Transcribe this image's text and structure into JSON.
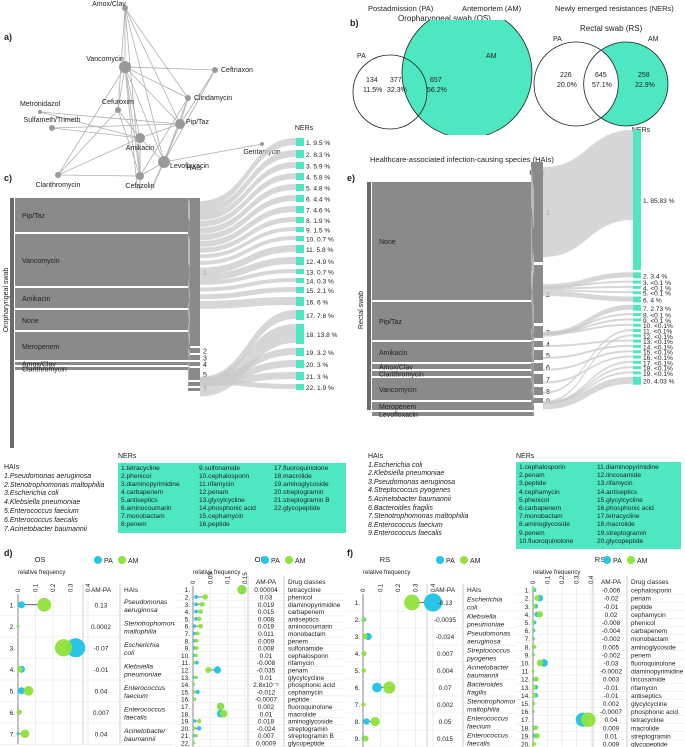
{
  "panels": {
    "a": "a)",
    "b": "b)",
    "c": "c)",
    "d": "d)",
    "e": "e)",
    "f": "f)"
  },
  "network": {
    "nodes": [
      "Amox/Clav",
      "Ceftriaxon",
      "Vancomycin",
      "Clindamycin",
      "Cefuroxim",
      "Metronidazol",
      "Pip/Taz",
      "Sulfameth/Trimeth",
      "Amikacin",
      "Gentamycin",
      "Levofloxacin",
      "Clarithromycin",
      "Cefazolin",
      "Meropenem"
    ]
  },
  "venn_header": {
    "pa": "Postadmission (PA)",
    "am": "Antemortem (AM)",
    "ner": "Newly emerged resistances (NERs)"
  },
  "venn_os": {
    "title": "Oropharyngeal swab (OS)",
    "left_label": "PA",
    "right_label": "AM",
    "left_n": "134",
    "left_p": "11.5%",
    "mid_n": "377",
    "mid_p": "32.3%",
    "right_n": "657",
    "right_p": "56.2%",
    "accent": "#4de8c2"
  },
  "venn_rs": {
    "title": "Rectal swab (RS)",
    "left_label": "PA",
    "right_label": "AM",
    "left_n": "226",
    "left_p": "20.0%",
    "mid_n": "645",
    "mid_p": "57.1%",
    "right_n": "258",
    "right_p": "22.9%"
  },
  "sankey_c": {
    "side_label": "Oropharyngeal swab",
    "hais": "HAIs",
    "ners": "NERs",
    "drugs": [
      "Pip/Taz",
      "Vancomycin",
      "Amikacin",
      "None",
      "Meropenem",
      "Amox/Clav",
      "Clarithromycin"
    ],
    "hai_nums": [
      "1",
      "2",
      "3",
      "4",
      "5",
      "6",
      "7"
    ],
    "ner_labels": [
      "1. 9.5 %",
      "2. 8.3 %",
      "3. 5.9 %",
      "4. 5.8 %",
      "5. 4.8 %",
      "6. 4.4 %",
      "7. 4.6 %",
      "8. 1.9 %",
      "9. 1.5 %",
      "10. 0.7 %",
      "11. 5.8 %",
      "12. 4.9 %",
      "13. 0.7 %",
      "14. 0.3 %",
      "15. 2.1 %",
      "16. 6 %",
      "17. 7.8 %",
      "18. 13.8 %",
      "19. 3.2 %",
      "20. 3 %",
      "21. 3 %",
      "22. 1.9 %"
    ]
  },
  "sankey_e": {
    "title": "Healthcare-associated infection-causing species (HAIs)",
    "side_label": "Rectal swab",
    "hais": "HAIs",
    "ners": "NERs",
    "drugs": [
      "None",
      "Pip/Taz",
      "Amikacin",
      "Amox/Clav",
      "Clarithromycin",
      "Vancomycin",
      "Meropenem",
      "Levofloxacin"
    ],
    "hai_nums": [
      "1",
      "2",
      "3",
      "4",
      "5",
      "6",
      "7",
      "8",
      "9"
    ],
    "ner_labels": [
      "1. 85.83 %",
      "2. 3.4 %",
      "3. <0.1 %",
      "4. <0.1 %",
      "5. <0.1 %",
      "6. 4 %",
      "7. 2.73 %",
      "8. <0.1 %",
      "9. <0.1 %",
      "10. <0.1%",
      "11. <0.1%",
      "12. <0.1%",
      "13. <0.1%",
      "14. <0.1%",
      "15. <0.1%",
      "16. <0.1%",
      "17. <0.1%",
      "18. <0.1%",
      "19. <0.1%",
      "20. 4.03 %"
    ]
  },
  "legend_c": {
    "hai_title": "HAIs",
    "hais": [
      "1.Pseudomonas aeruginosa",
      "2.Stenotrophomonas maltophilia",
      "3.Escherichia coli",
      "4.Klebsiella pneumoniae",
      "5.Enterococcus faecium",
      "6.Enterococcus faecalis",
      "7.Acinetobacter baumannii"
    ],
    "ner_title": "NERs",
    "ners": [
      "1.tetracycline",
      "2.phenicol",
      "3.diaminopyrimidine",
      "4.carbapenem",
      "5.antiseptics",
      "6.aminocoumarin",
      "7.monobactam",
      "8.penem",
      "9.sulfonamide",
      "10.cephalosporin",
      "11.rifamycin",
      "12.penam",
      "13.glycylcycline",
      "14.phosphonic acid",
      "15.cephamycin",
      "16.peptide",
      "17.fluoroquinolone",
      "18.macrolide",
      "19.aminoglycoside",
      "20.streptogramin",
      "21.streptogramin B",
      "22.glycopeptide"
    ]
  },
  "legend_e": {
    "hai_title": "HAIs",
    "hais": [
      "1.Escherichia coli",
      "2.Klebsiella pneumoniae",
      "3.Pseudomonas aeruginosa",
      "4.Streptococcus pyogenes",
      "5.Acinetobacter baumannii",
      "6.Bacteroides fragilis",
      "7.Stenotrophomonas maltophilia",
      "8.Enterococcus faecium",
      "9.Enterococcus faecalis"
    ],
    "ner_title": "NERs",
    "ners": [
      "1.cephalosporin",
      "2.penam",
      "3.peptide",
      "4.cephamycin",
      "5.phenicol",
      "6.carbapenem",
      "7.monobactam",
      "8.aminoglycoside",
      "9.penem",
      "10.fluoroquinolone",
      "11.diaminopyrimidine",
      "12.lincosamide",
      "13.rifamycin",
      "14.antiseptics",
      "15.glycylcycline",
      "16.phosphonic acid",
      "17.tetracycline",
      "18.macrolide",
      "19.streptogramin",
      "20.glycopeptide"
    ]
  },
  "dot_d_hai": {
    "title": "OS",
    "freq_label": "relative frequency",
    "legend": [
      "PA",
      "AM"
    ],
    "col_amp": "AM-PA",
    "col_name": "HAIs",
    "ticks": [
      "0",
      "0.1",
      "0.2",
      "0.3",
      "0.4"
    ],
    "rows": [
      {
        "n": "1.",
        "name": "Pseudomonas aeruginosa",
        "amp": "0.13",
        "pa": 0.02,
        "am": 0.15
      },
      {
        "n": "2.",
        "name": "Stenotrophomonas maltophilia",
        "amp": "0.0002",
        "pa": 0.0,
        "am": 0.0
      },
      {
        "n": "3.",
        "name": "Escherichia coli",
        "amp": "-0.07",
        "pa": 0.33,
        "am": 0.26
      },
      {
        "n": "4.",
        "name": "Klebsiella pneumoniae",
        "amp": "-0.01",
        "pa": 0.02,
        "am": 0.01
      },
      {
        "n": "5.",
        "name": "Enterococcus faecium",
        "amp": "0.04",
        "pa": 0.02,
        "am": 0.06
      },
      {
        "n": "6.",
        "name": "Enterococcus faecalis",
        "amp": "0.007",
        "pa": 0.0,
        "am": 0.007
      },
      {
        "n": "7.",
        "name": "Acinetobacter baumannii",
        "amp": "0.04",
        "pa": 0.0,
        "am": 0.04
      }
    ]
  },
  "dot_d_drug": {
    "title": "OS",
    "freq_label": "relative frequency",
    "legend": [
      "PA",
      "AM"
    ],
    "col_amp": "AM-PA",
    "col_name": "Drug classes",
    "ticks": [
      "0",
      "0.05",
      "0.1",
      "0.15"
    ],
    "rows": [
      {
        "n": "1.",
        "name": "tetracycline",
        "amp": "0.00004",
        "pa": 0.16,
        "am": 0.16
      },
      {
        "n": "2.",
        "name": "phenicol",
        "amp": "0.03",
        "pa": 0.01,
        "am": 0.04
      },
      {
        "n": "3.",
        "name": "diaminopyrimidine",
        "amp": "0.019",
        "pa": 0.01,
        "am": 0.03
      },
      {
        "n": "4.",
        "name": "carbapenem",
        "amp": "0.015",
        "pa": 0.01,
        "am": 0.025
      },
      {
        "n": "5.",
        "name": "antiseptics",
        "amp": "0.008",
        "pa": 0.01,
        "am": 0.02
      },
      {
        "n": "6.",
        "name": "aminocoumarin",
        "amp": "0.019",
        "pa": 0.005,
        "am": 0.025
      },
      {
        "n": "7.",
        "name": "monobactam",
        "amp": "0.011",
        "pa": 0.005,
        "am": 0.015
      },
      {
        "n": "8.",
        "name": "penem",
        "amp": "0.009",
        "pa": 0.005,
        "am": 0.012
      },
      {
        "n": "9.",
        "name": "sulfonamide",
        "amp": "0.008",
        "pa": 0.005,
        "am": 0.012
      },
      {
        "n": "10.",
        "name": "cephalosporin",
        "amp": "0.01",
        "pa": 0.003,
        "am": 0.01
      },
      {
        "n": "11.",
        "name": "rifamycin",
        "amp": "-0.008",
        "pa": 0.012,
        "am": 0.004
      },
      {
        "n": "12.",
        "name": "penam",
        "amp": "-0.035",
        "pa": 0.08,
        "am": 0.05
      },
      {
        "n": "13.",
        "name": "glycylcycline",
        "amp": "0.01",
        "pa": 0.002,
        "am": 0.01
      },
      {
        "n": "14.",
        "name": "phosphonic acid",
        "amp": "2.8x10⁻⁵",
        "pa": 0.002,
        "am": 0.002
      },
      {
        "n": "15.",
        "name": "cephamycin",
        "amp": "-0.012",
        "pa": 0.015,
        "am": 0.005
      },
      {
        "n": "16.",
        "name": "peptide",
        "amp": "-0.0007",
        "pa": 0.005,
        "am": 0.004
      },
      {
        "n": "17.",
        "name": "fluoroquinolone",
        "amp": "0.002",
        "pa": 0.09,
        "am": 0.09
      },
      {
        "n": "18.",
        "name": "macrolide",
        "amp": "0.01",
        "pa": 0.09,
        "am": 0.1
      },
      {
        "n": "19.",
        "name": "aminoglycoside",
        "amp": "0.018",
        "pa": 0.005,
        "am": 0.02
      },
      {
        "n": "20.",
        "name": "streptogramin",
        "amp": "-0.024",
        "pa": 0.02,
        "am": 0.005
      },
      {
        "n": "21.",
        "name": "streptogramin B",
        "amp": "0.007",
        "pa": 0.003,
        "am": 0.01
      },
      {
        "n": "22.",
        "name": "glycopeptide",
        "amp": "0.0009",
        "pa": 0.002,
        "am": 0.003
      }
    ]
  },
  "dot_f_hai": {
    "title": "RS",
    "freq_label": "relative frequency",
    "legend": [
      "PA",
      "AM"
    ],
    "col_amp": "AM-PA",
    "col_name": "HAIs",
    "ticks": [
      "0",
      "0.1",
      "0.2",
      "0.3",
      "0.4"
    ],
    "rows": [
      {
        "n": "1.",
        "name": "Escherichia coli",
        "amp": "-0.13",
        "pa": 0.4,
        "am": 0.28
      },
      {
        "n": "2.",
        "name": "Klebsiella pneumoniae",
        "amp": "-0.0035",
        "pa": 0.005,
        "am": 0.002
      },
      {
        "n": "3.",
        "name": "Pseudomonas aeruginosa",
        "amp": "-0.024",
        "pa": 0.03,
        "am": 0.01
      },
      {
        "n": "4.",
        "name": "Streptococcus pyogenes",
        "amp": "0.007",
        "pa": 0.0,
        "am": 0.007
      },
      {
        "n": "5.",
        "name": "Acinetobacter baumannii",
        "amp": "0.004",
        "pa": 0.0,
        "am": 0.004
      },
      {
        "n": "6.",
        "name": "Bacteroides fragilis",
        "amp": "0.07",
        "pa": 0.08,
        "am": 0.15
      },
      {
        "n": "7.",
        "name": "Stenotrophomonas maltophilia",
        "amp": "0.002",
        "pa": 0.0,
        "am": 0.002
      },
      {
        "n": "8.",
        "name": "Enterococcus faecium",
        "amp": "0.05",
        "pa": 0.02,
        "am": 0.07
      },
      {
        "n": "9.",
        "name": "Enterococcus faecalis",
        "amp": "0.015",
        "pa": 0.0,
        "am": 0.015
      }
    ]
  },
  "dot_f_drug": {
    "title": "RS",
    "freq_label": "relative frequency",
    "legend": [
      "PA",
      "AM"
    ],
    "col_amp": "AM-PA",
    "col_name": "Drug classes",
    "ticks": [
      "0",
      "0.1",
      "0.2",
      "0.3",
      "0.4"
    ],
    "rows": [
      {
        "n": "1.",
        "name": "cephalosporin",
        "amp": "-0.006",
        "pa": 0.01,
        "am": 0.004
      },
      {
        "n": "2.",
        "name": "penam",
        "amp": "-0.02",
        "pa": 0.05,
        "am": 0.03
      },
      {
        "n": "3.",
        "name": "peptide",
        "amp": "-0.01",
        "pa": 0.02,
        "am": 0.01
      },
      {
        "n": "4.",
        "name": "cephamycin",
        "amp": "0.02",
        "pa": 0.03,
        "am": 0.05
      },
      {
        "n": "5.",
        "name": "phenicol",
        "amp": "-0.008",
        "pa": 0.01,
        "am": 0.002
      },
      {
        "n": "6.",
        "name": "carbapenem",
        "amp": "-0.004",
        "pa": 0.005,
        "am": 0.001
      },
      {
        "n": "7.",
        "name": "monobactam",
        "amp": "-0.002",
        "pa": 0.003,
        "am": 0.001
      },
      {
        "n": "8.",
        "name": "aminoglycoside",
        "amp": "0.005",
        "pa": 0.005,
        "am": 0.01
      },
      {
        "n": "9.",
        "name": "penem",
        "amp": "-0.002",
        "pa": 0.003,
        "am": 0.001
      },
      {
        "n": "10.",
        "name": "fluoroquinolone",
        "amp": "-0.03",
        "pa": 0.08,
        "am": 0.05
      },
      {
        "n": "11.",
        "name": "diaminopyrimidine",
        "amp": "-0.0002",
        "pa": 0.001,
        "am": 0.001
      },
      {
        "n": "12.",
        "name": "lincosamide",
        "amp": "0.003",
        "pa": 0.02,
        "am": 0.023
      },
      {
        "n": "13.",
        "name": "rifamycin",
        "amp": "-0.01",
        "pa": 0.02,
        "am": 0.01
      },
      {
        "n": "14.",
        "name": "antiseptics",
        "amp": "-0.01",
        "pa": 0.02,
        "am": 0.01
      },
      {
        "n": "15.",
        "name": "glycylcycline",
        "amp": "0.002",
        "pa": 0.002,
        "am": 0.004
      },
      {
        "n": "16.",
        "name": "phosphonic acid",
        "amp": "-0.0007",
        "pa": 0.002,
        "am": 0.001
      },
      {
        "n": "17.",
        "name": "tetracycline",
        "amp": "0.04",
        "pa": 0.36,
        "am": 0.4
      },
      {
        "n": "18.",
        "name": "macrolide",
        "amp": "0.009",
        "pa": 0.01,
        "am": 0.02
      },
      {
        "n": "19.",
        "name": "streptogramin",
        "amp": "0.01",
        "pa": 0.02,
        "am": 0.03
      },
      {
        "n": "20.",
        "name": "glycopeptide",
        "amp": "0.009",
        "pa": 0.0,
        "am": 0.009
      }
    ]
  },
  "colors": {
    "pa": "#29c5e6",
    "am": "#8fe33a",
    "teal": "#4de8c2",
    "bar": "#8a8a8a",
    "flow": "#c9c9c9"
  }
}
